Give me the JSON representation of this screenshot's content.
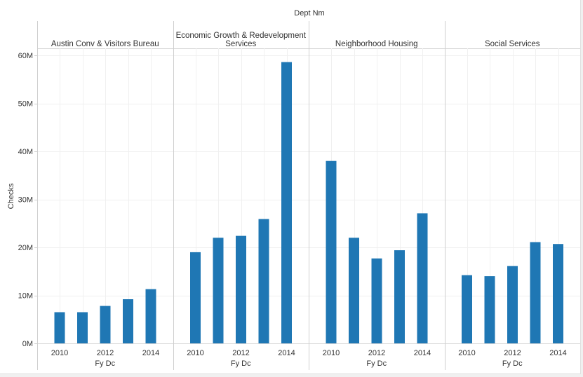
{
  "chart_data": {
    "type": "bar",
    "title": "Dept Nm",
    "ylabel": "Checks",
    "xlabel": "Fy Dc",
    "ylim": [
      0,
      60000000
    ],
    "yticks": [
      {
        "value": 0,
        "label": "0M"
      },
      {
        "value": 10000000,
        "label": "10M"
      },
      {
        "value": 20000000,
        "label": "20M"
      },
      {
        "value": 30000000,
        "label": "30M"
      },
      {
        "value": 40000000,
        "label": "40M"
      },
      {
        "value": 50000000,
        "label": "50M"
      },
      {
        "value": 60000000,
        "label": "60M"
      }
    ],
    "categories": [
      "2010",
      "2011",
      "2012",
      "2013",
      "2014"
    ],
    "xtick_labels": [
      "2010",
      "",
      "2012",
      "",
      "2014"
    ],
    "bar_color": "#1f77b4",
    "grid": true,
    "panels": [
      {
        "name": "Austin Conv & Visitors Bureau",
        "values": [
          6500000,
          6500000,
          7800000,
          9200000,
          11300000
        ]
      },
      {
        "name": "Economic Growth & Redevelopment\nServices",
        "values": [
          19000000,
          22000000,
          22400000,
          25900000,
          58600000
        ]
      },
      {
        "name": "Neighborhood Housing",
        "values": [
          38000000,
          22000000,
          17700000,
          19400000,
          27100000
        ]
      },
      {
        "name": "Social Services",
        "values": [
          14200000,
          14000000,
          16100000,
          21100000,
          20700000
        ]
      }
    ]
  }
}
